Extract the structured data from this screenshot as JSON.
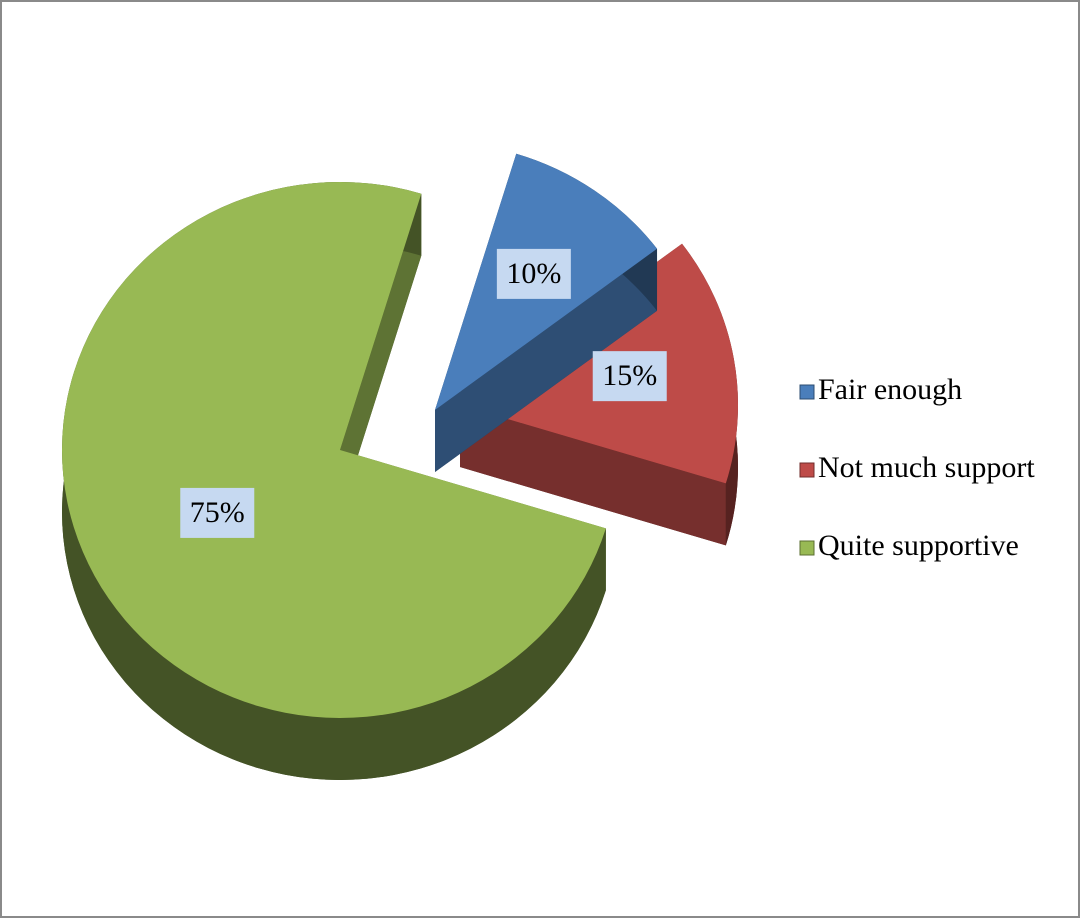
{
  "chart_data": {
    "type": "pie",
    "categories": [
      "Fair enough",
      "Not much support",
      "Quite supportive"
    ],
    "values": [
      10,
      15,
      75
    ],
    "value_labels": [
      "10%",
      "15%",
      "75%"
    ],
    "colors": [
      "#4a7ebb",
      "#be4b48",
      "#98b954"
    ],
    "legend": "right"
  }
}
